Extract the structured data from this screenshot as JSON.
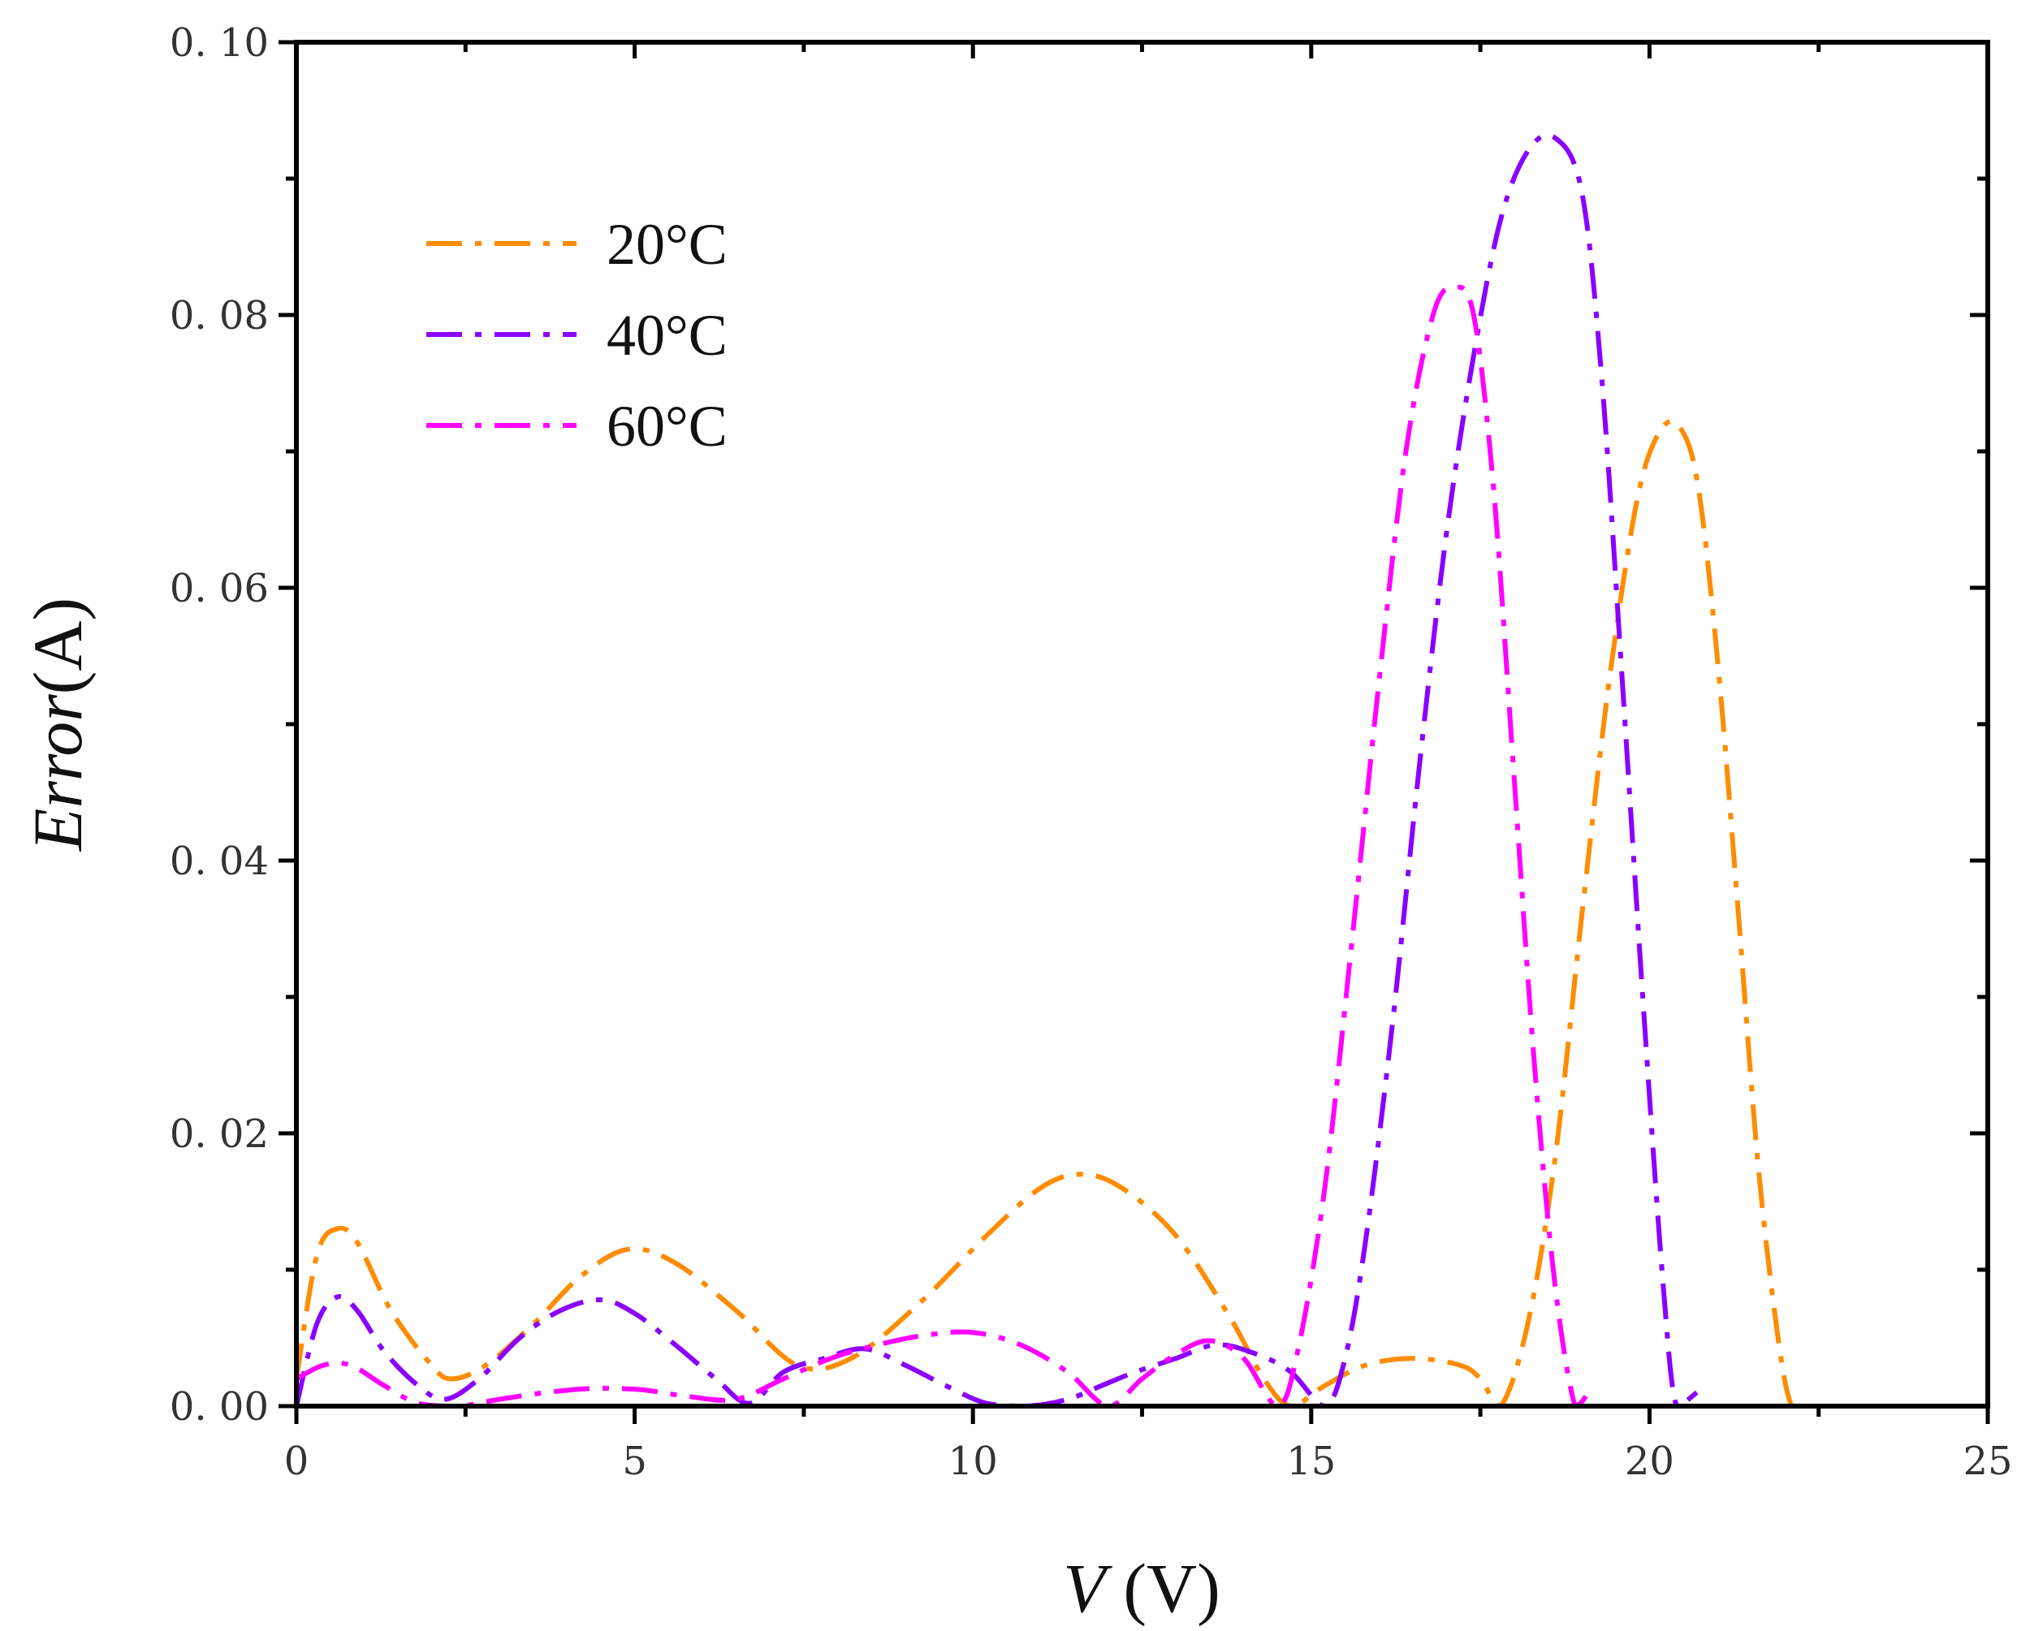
{
  "chart_data": {
    "type": "line",
    "title": "",
    "xlabel": {
      "italic": "V",
      "rest": " (V)"
    },
    "ylabel": {
      "italic": "Error",
      "rest": "(A)"
    },
    "xlim": [
      0,
      25
    ],
    "ylim": [
      0,
      0.1
    ],
    "x_ticks": [
      0,
      5,
      10,
      15,
      20,
      25
    ],
    "x_tick_labels": [
      "0",
      "5",
      "10",
      "15",
      "20",
      "25"
    ],
    "y_ticks": [
      0,
      0.02,
      0.04,
      0.06,
      0.08,
      0.1
    ],
    "y_tick_labels": [
      "0. 00",
      "0. 02",
      "0. 04",
      "0. 06",
      "0. 08",
      "0. 10"
    ],
    "grid": false,
    "legend_position": "top-left",
    "series": [
      {
        "name": "20°C",
        "color": "#FF8C00",
        "x": [
          0.0,
          0.3,
          0.6,
          0.9,
          1.4,
          2.0,
          2.3,
          2.8,
          3.5,
          4.2,
          4.9,
          5.6,
          6.5,
          7.4,
          8.2,
          9.2,
          10.2,
          11.0,
          11.6,
          12.2,
          13.0,
          13.8,
          14.3,
          14.7,
          15.2,
          15.8,
          16.5,
          17.2,
          17.5,
          17.8,
          18.2,
          18.6,
          19.0,
          19.4,
          19.8,
          20.1,
          20.4,
          20.7,
          21.0,
          21.3,
          21.6,
          21.9,
          22.1,
          22.3
        ],
        "y": [
          0.002,
          0.011,
          0.013,
          0.012,
          0.007,
          0.003,
          0.002,
          0.003,
          0.006,
          0.0095,
          0.0115,
          0.0105,
          0.007,
          0.003,
          0.0035,
          0.0075,
          0.0125,
          0.016,
          0.017,
          0.016,
          0.0125,
          0.0065,
          0.002,
          0.0,
          0.0015,
          0.003,
          0.0035,
          0.003,
          0.002,
          0.0,
          0.006,
          0.018,
          0.036,
          0.053,
          0.066,
          0.071,
          0.072,
          0.068,
          0.055,
          0.037,
          0.018,
          0.005,
          0.0,
          0.0
        ]
      },
      {
        "name": "40°C",
        "color": "#8A00FF",
        "x": [
          0.0,
          0.3,
          0.6,
          0.9,
          1.3,
          1.8,
          2.2,
          2.7,
          3.3,
          3.9,
          4.5,
          5.0,
          5.6,
          6.2,
          6.7,
          7.2,
          7.8,
          8.4,
          9.0,
          9.6,
          10.2,
          10.8,
          11.4,
          11.9,
          12.4,
          13.0,
          13.6,
          14.2,
          14.7,
          15.2,
          15.5,
          15.8,
          16.2,
          16.6,
          17.0,
          17.4,
          17.8,
          18.2,
          18.6,
          19.0,
          19.3,
          19.6,
          19.9,
          20.2,
          20.4,
          20.7
        ],
        "y": [
          0.0,
          0.006,
          0.008,
          0.007,
          0.004,
          0.0015,
          0.0005,
          0.002,
          0.005,
          0.007,
          0.0078,
          0.0068,
          0.0045,
          0.002,
          0.0002,
          0.0025,
          0.0035,
          0.0042,
          0.003,
          0.0015,
          0.0002,
          0.0,
          0.0005,
          0.0015,
          0.0025,
          0.0035,
          0.0045,
          0.0038,
          0.0025,
          0.0,
          0.0035,
          0.012,
          0.028,
          0.047,
          0.064,
          0.077,
          0.087,
          0.092,
          0.093,
          0.089,
          0.075,
          0.053,
          0.03,
          0.009,
          0.0,
          0.001
        ]
      },
      {
        "name": "60°C",
        "color": "#FF00FF",
        "x": [
          0.0,
          0.4,
          0.8,
          1.3,
          1.8,
          2.4,
          3.0,
          3.7,
          4.4,
          5.1,
          5.8,
          6.5,
          7.2,
          7.9,
          8.6,
          9.3,
          10.0,
          10.7,
          11.4,
          12.0,
          12.5,
          13.0,
          13.5,
          14.0,
          14.5,
          14.8,
          15.2,
          15.6,
          16.0,
          16.4,
          16.8,
          17.1,
          17.4,
          17.7,
          18.0,
          18.3,
          18.6,
          18.9,
          19.1
        ],
        "y": [
          0.002,
          0.003,
          0.003,
          0.0015,
          0.0002,
          0.0,
          0.0005,
          0.001,
          0.0013,
          0.0012,
          0.0007,
          0.0005,
          0.002,
          0.0035,
          0.0045,
          0.0052,
          0.0054,
          0.0045,
          0.0025,
          0.0,
          0.002,
          0.0038,
          0.0048,
          0.0035,
          0.0,
          0.004,
          0.016,
          0.034,
          0.053,
          0.07,
          0.08,
          0.082,
          0.08,
          0.067,
          0.046,
          0.025,
          0.009,
          0.0,
          0.001
        ]
      }
    ]
  }
}
